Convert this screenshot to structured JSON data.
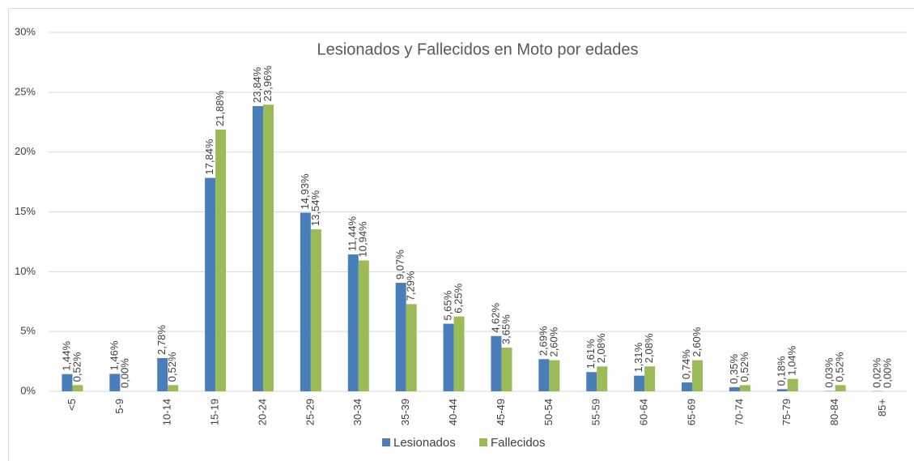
{
  "chart_data": {
    "type": "bar",
    "title": "Lesionados y Fallecidos en Moto por edades",
    "categories": [
      "<5",
      "5-9",
      "10-14",
      "15-19",
      "20-24",
      "25-29",
      "30-34",
      "35-39",
      "40-44",
      "45-49",
      "50-54",
      "55-59",
      "60-64",
      "65-69",
      "70-74",
      "75-79",
      "80-84",
      "85+"
    ],
    "series": [
      {
        "name": "Lesionados",
        "color": "#4a7ebb",
        "values": [
          1.44,
          1.46,
          2.78,
          17.84,
          23.84,
          14.93,
          11.44,
          9.07,
          5.65,
          4.62,
          2.69,
          1.61,
          1.31,
          0.74,
          0.35,
          0.18,
          0.03,
          0.02
        ],
        "value_labels": [
          "1,44%",
          "1,46%",
          "2,78%",
          "17,84%",
          "23,84%",
          "14,93%",
          "11,44%",
          "9,07%",
          "5,65%",
          "4,62%",
          "2,69%",
          "1,61%",
          "1,31%",
          "0,74%",
          "0,35%",
          "0,18%",
          "0,03%",
          "0,02%"
        ]
      },
      {
        "name": "Fallecidos",
        "color": "#9bbb59",
        "values": [
          0.52,
          0.0,
          0.52,
          21.88,
          23.96,
          13.54,
          10.94,
          7.29,
          6.25,
          3.65,
          2.6,
          2.08,
          2.08,
          2.6,
          0.52,
          1.04,
          0.52,
          0.0
        ],
        "value_labels": [
          "0,52%",
          "0,00%",
          "0,52%",
          "21,88%",
          "23,96%",
          "13,54%",
          "10,94%",
          "7,29%",
          "6,25%",
          "3,65%",
          "2,60%",
          "2,08%",
          "2,08%",
          "2,60%",
          "0,52%",
          "1,04%",
          "0,52%",
          "0,00%"
        ]
      }
    ],
    "ylim": [
      0,
      30
    ],
    "yticks": [
      {
        "value": 0,
        "label": "0%"
      },
      {
        "value": 5,
        "label": "5%"
      },
      {
        "value": 10,
        "label": "10%"
      },
      {
        "value": 15,
        "label": "15%"
      },
      {
        "value": 20,
        "label": "20%"
      },
      {
        "value": 25,
        "label": "25%"
      },
      {
        "value": 30,
        "label": "30%"
      }
    ],
    "grid": true,
    "legend": "bottom"
  }
}
